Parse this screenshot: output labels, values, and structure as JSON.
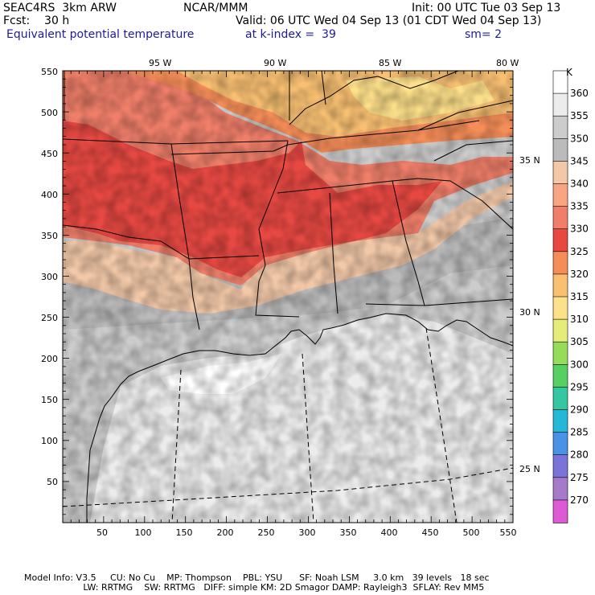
{
  "header": {
    "left_line1": "SEAC4RS  3km ARW",
    "left_line2": "Fcst:    30 h",
    "center_line1": "NCAR/MMM",
    "init": "Init: 00 UTC Tue 03 Sep 13",
    "valid": "Valid: 06 UTC Wed 04 Sep 13 (01 CDT Wed 04 Sep 13)",
    "field": "Equivalent potential temperature",
    "level": "at k-index =  39",
    "smooth": "sm= 2"
  },
  "axes": {
    "x_ticks": [
      "50",
      "100",
      "150",
      "200",
      "250",
      "300",
      "350",
      "400",
      "450",
      "500",
      "550"
    ],
    "y_ticks": [
      "50",
      "100",
      "150",
      "200",
      "250",
      "300",
      "350",
      "400",
      "450",
      "500",
      "550"
    ],
    "lon_labels": [
      "95 W",
      "90 W",
      "85 W",
      "80 W"
    ],
    "lat_labels": [
      "35 N",
      "30 N",
      "25 N"
    ]
  },
  "colorbar": {
    "unit": "K",
    "labels": [
      "360",
      "355",
      "350",
      "345",
      "340",
      "335",
      "330",
      "325",
      "320",
      "315",
      "310",
      "305",
      "300",
      "295",
      "290",
      "285",
      "280",
      "275",
      "270"
    ],
    "colors": [
      "#ffffff",
      "#ececec",
      "#cccccc",
      "#bbbbbb",
      "#f2c8a8",
      "#f7a582",
      "#f07f6a",
      "#e74842",
      "#f58d58",
      "#f9c072",
      "#fde08a",
      "#e6ec7a",
      "#96dc5a",
      "#58cf62",
      "#34c7a2",
      "#24b7d6",
      "#4a92e6",
      "#7a74d8",
      "#a47ac9",
      "#dc5ad4"
    ]
  },
  "footer": {
    "line1": "Model Info: V3.5     CU: No Cu    MP: Thompson    PBL: YSU      SF: Noah LSM     3.0 km   39 levels   18 sec",
    "line2": "                     LW: RRTMG    SW: RRTMG   DIFF: simple KM: 2D Smagor DAMP: Rayleigh3  SFLAY: Rev MM5"
  }
}
